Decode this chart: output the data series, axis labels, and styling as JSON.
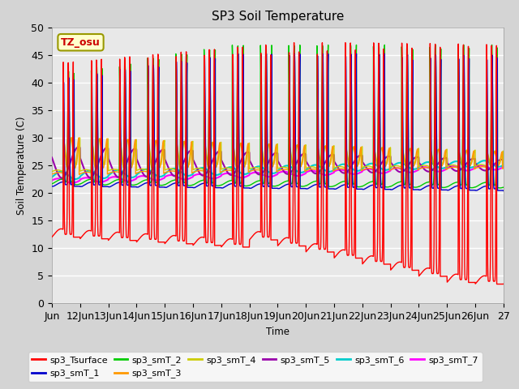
{
  "title": "SP3 Soil Temperature",
  "ylabel": "Soil Temperature (C)",
  "xlabel": "Time",
  "annotation": "TZ_osu",
  "ylim": [
    0,
    50
  ],
  "xlim": [
    0,
    16
  ],
  "fig_bg": "#d4d4d4",
  "plot_bg": "#e8e8e8",
  "series_colors": {
    "sp3_Tsurface": "#ff0000",
    "sp3_smT_1": "#0000cc",
    "sp3_smT_2": "#00cc00",
    "sp3_smT_3": "#ff9900",
    "sp3_smT_4": "#cccc00",
    "sp3_smT_5": "#9900aa",
    "sp3_smT_6": "#00cccc",
    "sp3_smT_7": "#ff00ff"
  },
  "xtick_labels": [
    "Jun",
    "12Jun",
    "13Jun",
    "14Jun",
    "15Jun",
    "16Jun",
    "17Jun",
    "18Jun",
    "19Jun",
    "20Jun",
    "21Jun",
    "22Jun",
    "23Jun",
    "24Jun",
    "25Jun",
    "26Jun",
    "27"
  ],
  "n_days": 16,
  "pts_per_day": 144
}
